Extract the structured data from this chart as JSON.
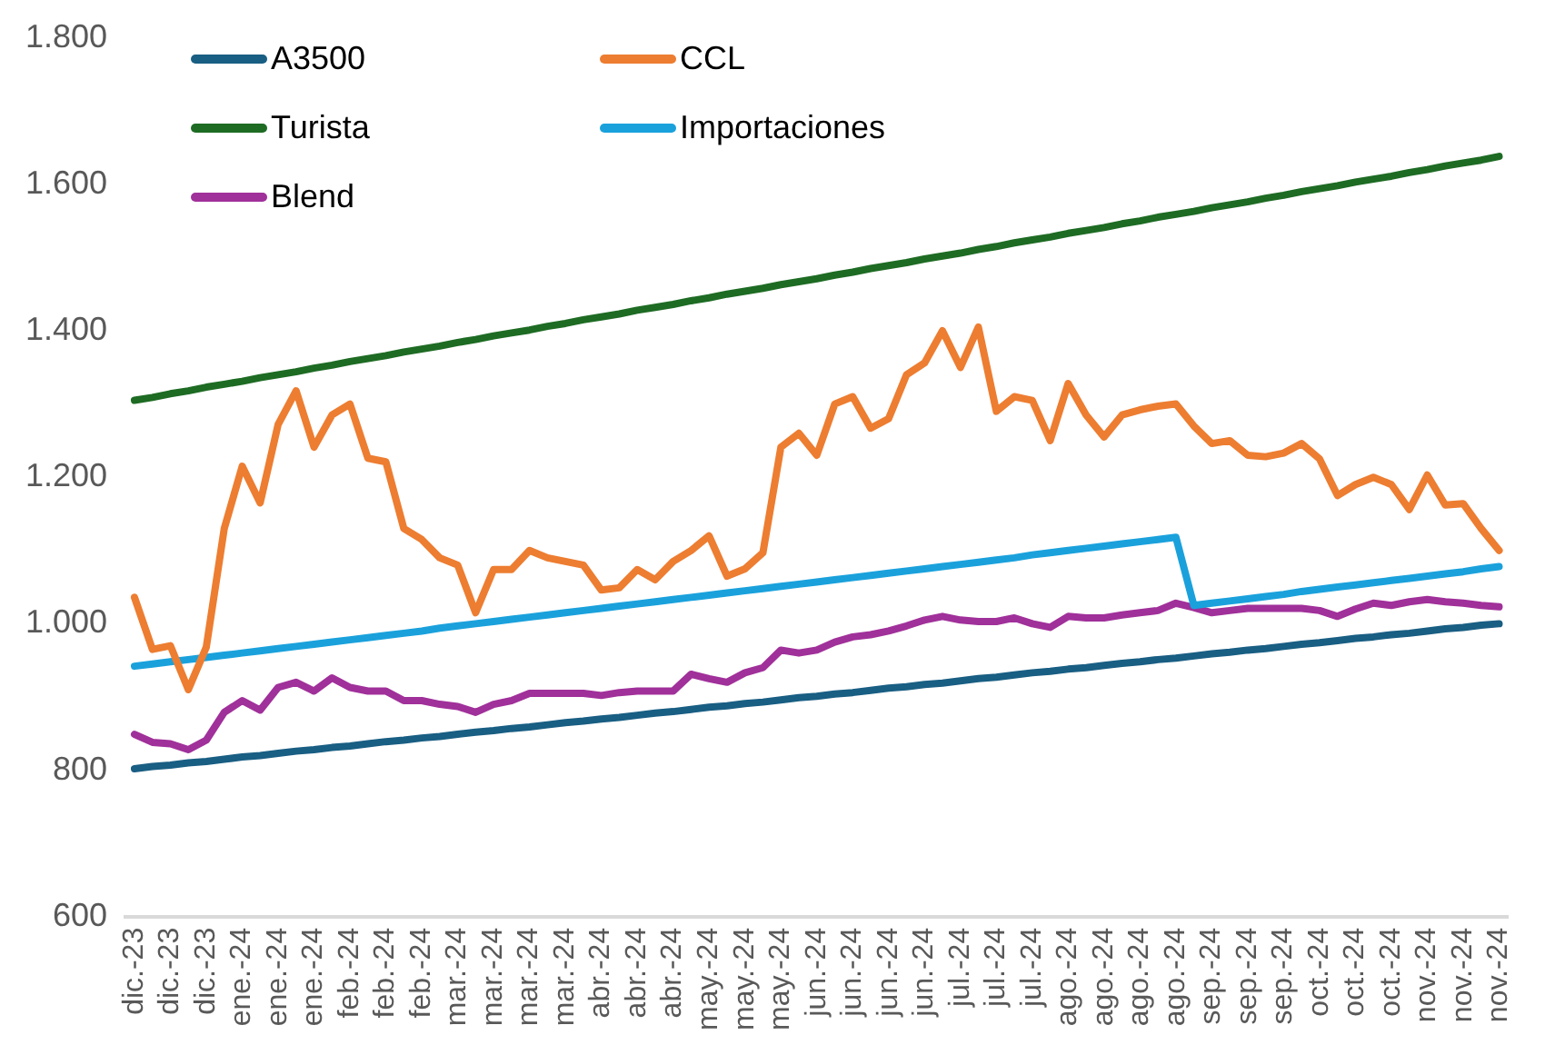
{
  "chart_data": {
    "type": "line",
    "categories": [
      "dic.-23",
      null,
      "dic.-23",
      null,
      "dic.-23",
      null,
      "ene.-24",
      null,
      "ene.-24",
      null,
      "ene.-24",
      null,
      "feb.-24",
      null,
      "feb.-24",
      null,
      "feb.-24",
      null,
      "mar.-24",
      null,
      "mar.-24",
      null,
      "mar.-24",
      null,
      "mar.-24",
      null,
      "abr.-24",
      null,
      "abr.-24",
      null,
      "abr.-24",
      null,
      "may.-24",
      null,
      "may.-24",
      null,
      "may.-24",
      null,
      "jun.-24",
      null,
      "jun.-24",
      null,
      "jun.-24",
      null,
      "jun.-24",
      null,
      "jul.-24",
      null,
      "jul.-24",
      null,
      "jul.-24",
      null,
      "ago.-24",
      null,
      "ago.-24",
      null,
      "ago.-24",
      null,
      "ago.-24",
      null,
      "sep.-24",
      null,
      "sep.-24",
      null,
      "sep.-24",
      null,
      "oct.-24",
      null,
      "oct.-24",
      null,
      "oct.-24",
      null,
      "nov.-24",
      null,
      "nov.-24",
      null,
      "nov.-24"
    ],
    "series": [
      {
        "name": "A3500",
        "color": "#195e83",
        "values": [
          802,
          805,
          807,
          810,
          812,
          815,
          818,
          820,
          823,
          826,
          828,
          831,
          833,
          836,
          839,
          841,
          844,
          846,
          849,
          852,
          854,
          857,
          859,
          862,
          865,
          867,
          870,
          872,
          875,
          878,
          880,
          883,
          886,
          888,
          891,
          893,
          896,
          899,
          901,
          904,
          906,
          909,
          912,
          914,
          917,
          919,
          922,
          925,
          927,
          930,
          933,
          935,
          938,
          940,
          943,
          946,
          948,
          951,
          953,
          956,
          959,
          961,
          964,
          966,
          969,
          972,
          974,
          977,
          980,
          982,
          985,
          987,
          990,
          993,
          995,
          998,
          1000
        ]
      },
      {
        "name": "CCL",
        "color": "#ed7d31",
        "values": [
          1036,
          965,
          970,
          910,
          968,
          1130,
          1215,
          1165,
          1272,
          1318,
          1241,
          1285,
          1300,
          1226,
          1221,
          1130,
          1115,
          1090,
          1080,
          1015,
          1074,
          1074,
          1100,
          1090,
          1085,
          1080,
          1046,
          1049,
          1074,
          1060,
          1085,
          1100,
          1120,
          1065,
          1075,
          1097,
          1241,
          1260,
          1230,
          1300,
          1310,
          1267,
          1280,
          1340,
          1356,
          1400,
          1350,
          1405,
          1290,
          1310,
          1305,
          1250,
          1328,
          1285,
          1255,
          1285,
          1292,
          1297,
          1300,
          1270,
          1246,
          1250,
          1230,
          1228,
          1233,
          1246,
          1225,
          1175,
          1190,
          1200,
          1190,
          1156,
          1203,
          1162,
          1164,
          1130,
          1100
        ]
      },
      {
        "name": "Turista",
        "color": "#1e6b24",
        "values": [
          1305,
          1309,
          1314,
          1318,
          1323,
          1327,
          1331,
          1336,
          1340,
          1344,
          1349,
          1353,
          1358,
          1362,
          1366,
          1371,
          1375,
          1379,
          1384,
          1388,
          1393,
          1397,
          1401,
          1406,
          1410,
          1415,
          1419,
          1423,
          1428,
          1432,
          1436,
          1441,
          1445,
          1450,
          1454,
          1458,
          1463,
          1467,
          1471,
          1476,
          1480,
          1485,
          1489,
          1493,
          1498,
          1502,
          1506,
          1511,
          1515,
          1520,
          1524,
          1528,
          1533,
          1537,
          1541,
          1546,
          1550,
          1555,
          1559,
          1563,
          1568,
          1572,
          1576,
          1581,
          1585,
          1590,
          1594,
          1598,
          1603,
          1607,
          1611,
          1616,
          1620,
          1625,
          1629,
          1633,
          1638
        ]
      },
      {
        "name": "Importaciones",
        "color": "#1aa1dc",
        "values": [
          942,
          945,
          948,
          951,
          954,
          957,
          960,
          963,
          966,
          969,
          972,
          975,
          978,
          981,
          984,
          987,
          990,
          994,
          997,
          1000,
          1003,
          1006,
          1009,
          1012,
          1015,
          1018,
          1021,
          1024,
          1027,
          1030,
          1033,
          1036,
          1039,
          1042,
          1045,
          1048,
          1051,
          1054,
          1057,
          1060,
          1063,
          1066,
          1069,
          1072,
          1075,
          1078,
          1081,
          1084,
          1087,
          1090,
          1094,
          1097,
          1100,
          1103,
          1106,
          1109,
          1112,
          1115,
          1118,
          1025,
          1028,
          1031,
          1034,
          1037,
          1040,
          1044,
          1047,
          1050,
          1053,
          1056,
          1059,
          1062,
          1065,
          1068,
          1071,
          1075,
          1078
        ]
      },
      {
        "name": "Blend",
        "color": "#a0309a",
        "values": [
          849,
          838,
          836,
          828,
          841,
          879,
          895,
          882,
          913,
          920,
          908,
          926,
          913,
          908,
          908,
          895,
          895,
          890,
          887,
          879,
          890,
          895,
          905,
          905,
          905,
          905,
          902,
          906,
          908,
          908,
          908,
          931,
          925,
          920,
          933,
          940,
          964,
          960,
          964,
          975,
          982,
          985,
          990,
          997,
          1005,
          1010,
          1005,
          1003,
          1003,
          1008,
          1000,
          995,
          1010,
          1008,
          1008,
          1012,
          1015,
          1018,
          1028,
          1022,
          1015,
          1018,
          1021,
          1021,
          1021,
          1021,
          1018,
          1010,
          1020,
          1028,
          1025,
          1030,
          1033,
          1030,
          1028,
          1025,
          1023
        ]
      }
    ],
    "ylim": [
      600,
      1800
    ],
    "yticks": [
      600,
      800,
      {
        "value": 1000,
        "label": "1.000"
      },
      {
        "value": 1200,
        "label": "1.200"
      },
      {
        "value": 1400,
        "label": "1.400"
      },
      {
        "value": 1600,
        "label": "1.600"
      },
      {
        "value": 1800,
        "label": "1.800"
      }
    ],
    "grid": false,
    "legend": "top left",
    "marker": "none",
    "line_style": "solid"
  }
}
